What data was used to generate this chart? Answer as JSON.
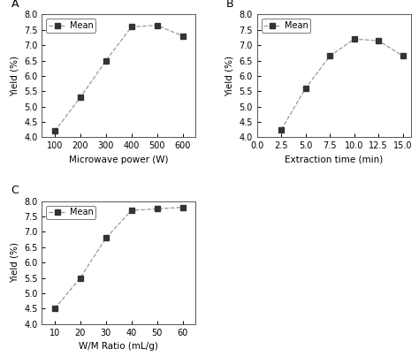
{
  "panel_A": {
    "x": [
      100,
      200,
      300,
      400,
      500,
      600
    ],
    "y": [
      4.2,
      5.3,
      6.5,
      7.6,
      7.65,
      7.3
    ],
    "xlabel": "Microwave power (W)",
    "ylabel": "Yield (%)",
    "xlim": [
      50,
      650
    ],
    "xticks": [
      100,
      200,
      300,
      400,
      500,
      600
    ],
    "ylim": [
      4.0,
      8.0
    ],
    "yticks": [
      4.0,
      4.5,
      5.0,
      5.5,
      6.0,
      6.5,
      7.0,
      7.5,
      8.0
    ],
    "label": "A"
  },
  "panel_B": {
    "x": [
      2.5,
      5.0,
      7.5,
      10.0,
      12.5,
      15.0
    ],
    "y": [
      4.25,
      5.6,
      6.65,
      7.2,
      7.15,
      6.65
    ],
    "xlabel": "Extraction time (min)",
    "ylabel": "Yield (%)",
    "xlim": [
      0.0,
      15.8
    ],
    "xticks": [
      0.0,
      2.5,
      5.0,
      7.5,
      10.0,
      12.5,
      15.0
    ],
    "ylim": [
      4.0,
      8.0
    ],
    "yticks": [
      4.0,
      4.5,
      5.0,
      5.5,
      6.0,
      6.5,
      7.0,
      7.5,
      8.0
    ],
    "label": "B"
  },
  "panel_C": {
    "x": [
      10,
      20,
      30,
      40,
      50,
      60
    ],
    "y": [
      4.5,
      5.5,
      6.8,
      7.7,
      7.75,
      7.8
    ],
    "xlabel": "W/M Ratio (mL/g)",
    "ylabel": "Yield (%)",
    "xlim": [
      5,
      65
    ],
    "xticks": [
      10,
      20,
      30,
      40,
      50,
      60
    ],
    "ylim": [
      4.0,
      8.0
    ],
    "yticks": [
      4.0,
      4.5,
      5.0,
      5.5,
      6.0,
      6.5,
      7.0,
      7.5,
      8.0
    ],
    "label": "C"
  },
  "line_color": "#999999",
  "marker": "s",
  "marker_color": "#333333",
  "marker_size": 4,
  "legend_label": "Mean",
  "font_size": 7.5,
  "tick_font_size": 7,
  "label_font_size": 9
}
